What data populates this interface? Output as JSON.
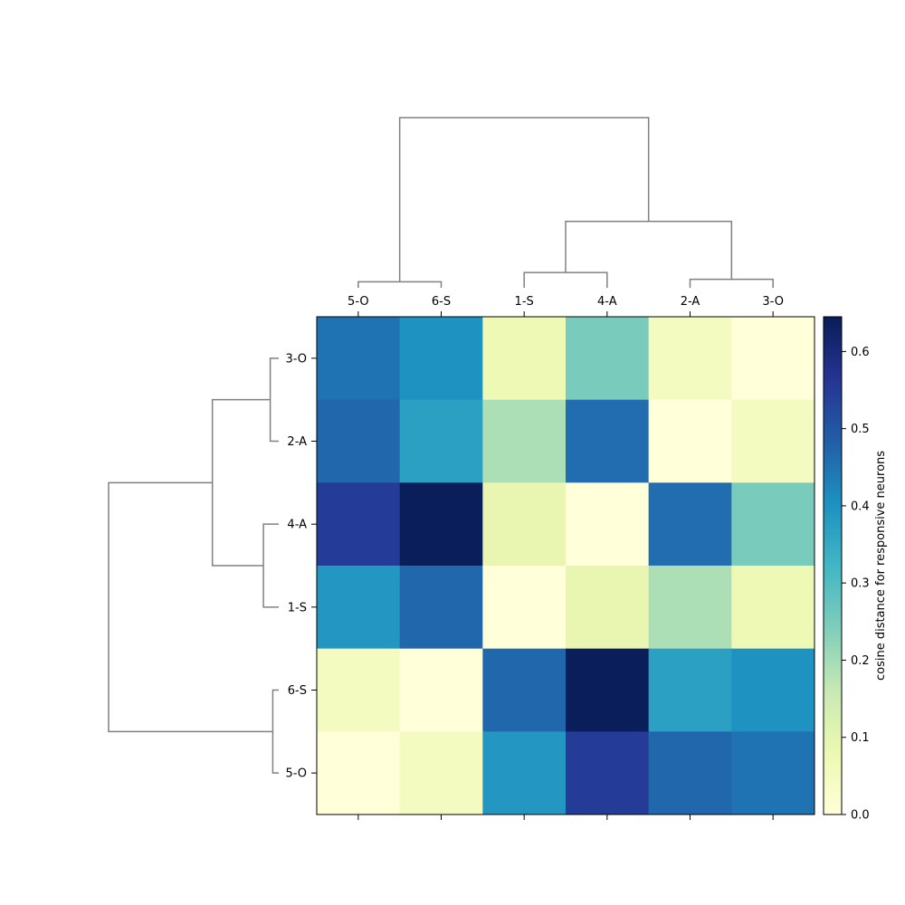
{
  "chart_data": {
    "type": "heatmap",
    "title": "",
    "row_labels": [
      "3-O",
      "2-A",
      "4-A",
      "1-S",
      "6-S",
      "5-O"
    ],
    "col_labels": [
      "5-O",
      "6-S",
      "1-S",
      "4-A",
      "2-A",
      "3-O"
    ],
    "values": [
      [
        0.45,
        0.4,
        0.07,
        0.25,
        0.05,
        0.0
      ],
      [
        0.47,
        0.37,
        0.19,
        0.46,
        0.0,
        0.05
      ],
      [
        0.55,
        0.64,
        0.09,
        0.0,
        0.46,
        0.25
      ],
      [
        0.39,
        0.47,
        0.0,
        0.09,
        0.19,
        0.07
      ],
      [
        0.05,
        0.0,
        0.47,
        0.64,
        0.37,
        0.4
      ],
      [
        0.0,
        0.05,
        0.39,
        0.55,
        0.47,
        0.45
      ]
    ],
    "colormap": "YlGnBu",
    "colorbar": {
      "label": "cosine distance for responsive neurons",
      "vmin": 0.0,
      "vmax": 0.645,
      "ticks": [
        0.0,
        0.1,
        0.2,
        0.3,
        0.4,
        0.5,
        0.6
      ],
      "tick_labels": [
        "0.0",
        "0.1",
        "0.2",
        "0.3",
        "0.4",
        "0.5",
        "0.6"
      ]
    },
    "col_dendrogram": {
      "leaves": [
        "5-O",
        "6-S",
        "1-S",
        "4-A",
        "2-A",
        "3-O"
      ],
      "merges": [
        {
          "left": [
            0
          ],
          "right": [
            1
          ],
          "height": 0.035
        },
        {
          "left": [
            2
          ],
          "right": [
            3
          ],
          "height": 0.09
        },
        {
          "left": [
            4
          ],
          "right": [
            5
          ],
          "height": 0.05
        },
        {
          "left": [
            2,
            3
          ],
          "right": [
            4,
            5
          ],
          "height": 0.39
        },
        {
          "left": [
            0,
            1
          ],
          "right": [
            2,
            3,
            4,
            5
          ],
          "height": 1.0
        }
      ]
    },
    "row_dendrogram": {
      "leaves": [
        "3-O",
        "2-A",
        "4-A",
        "1-S",
        "6-S",
        "5-O"
      ],
      "merges": [
        {
          "top": [
            0
          ],
          "bottom": [
            1
          ],
          "height": 0.05
        },
        {
          "top": [
            2
          ],
          "bottom": [
            3
          ],
          "height": 0.09
        },
        {
          "top": [
            4
          ],
          "bottom": [
            5
          ],
          "height": 0.035
        },
        {
          "top": [
            0,
            1
          ],
          "bottom": [
            2,
            3
          ],
          "height": 0.39
        },
        {
          "top": [
            0,
            1,
            2,
            3
          ],
          "bottom": [
            4,
            5
          ],
          "height": 1.0
        }
      ]
    }
  }
}
